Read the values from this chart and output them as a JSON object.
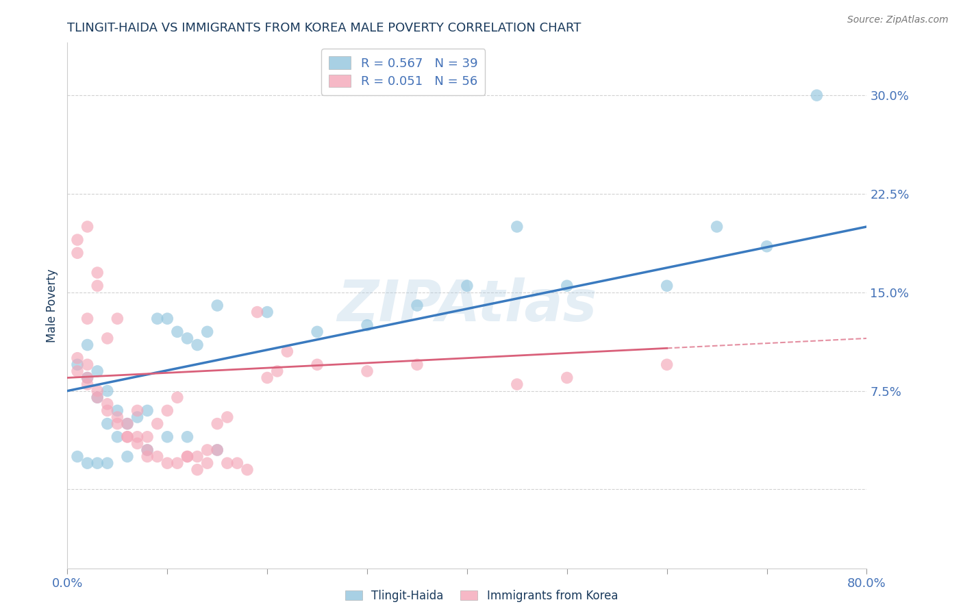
{
  "title": "TLINGIT-HAIDA VS IMMIGRANTS FROM KOREA MALE POVERTY CORRELATION CHART",
  "source": "Source: ZipAtlas.com",
  "ylabel": "Male Poverty",
  "xlim": [
    0.0,
    0.8
  ],
  "ylim": [
    -0.06,
    0.34
  ],
  "ytick_vals": [
    0.0,
    0.075,
    0.15,
    0.225,
    0.3
  ],
  "ytick_labels": [
    "",
    "7.5%",
    "15.0%",
    "22.5%",
    "30.0%"
  ],
  "xtick_vals": [
    0.0,
    0.1,
    0.2,
    0.3,
    0.4,
    0.5,
    0.6,
    0.7,
    0.8
  ],
  "xtick_labels": [
    "0.0%",
    "",
    "",
    "",
    "",
    "",
    "",
    "",
    "80.0%"
  ],
  "watermark": "ZIPAtlas",
  "legend_r1": "R = 0.567",
  "legend_n1": "N = 39",
  "legend_r2": "R = 0.051",
  "legend_n2": "N = 56",
  "series1_color": "#92c5de",
  "series2_color": "#f4a6b8",
  "line1_color": "#3a7abf",
  "line2_color": "#d9607a",
  "background_color": "#ffffff",
  "grid_color": "#cccccc",
  "title_color": "#1a3a5c",
  "axis_label_color": "#1a3a5c",
  "tick_color": "#4472b8",
  "series1_x": [
    0.01,
    0.02,
    0.02,
    0.03,
    0.03,
    0.04,
    0.04,
    0.05,
    0.05,
    0.06,
    0.07,
    0.08,
    0.09,
    0.1,
    0.11,
    0.12,
    0.13,
    0.14,
    0.15,
    0.2,
    0.25,
    0.3,
    0.35,
    0.4,
    0.45,
    0.5,
    0.6,
    0.65,
    0.7,
    0.75,
    0.01,
    0.02,
    0.03,
    0.04,
    0.06,
    0.08,
    0.1,
    0.12,
    0.15
  ],
  "series1_y": [
    0.095,
    0.085,
    0.11,
    0.09,
    0.07,
    0.075,
    0.05,
    0.06,
    0.04,
    0.05,
    0.055,
    0.06,
    0.13,
    0.13,
    0.12,
    0.115,
    0.11,
    0.12,
    0.14,
    0.135,
    0.12,
    0.125,
    0.14,
    0.155,
    0.2,
    0.155,
    0.155,
    0.2,
    0.185,
    0.3,
    0.025,
    0.02,
    0.02,
    0.02,
    0.025,
    0.03,
    0.04,
    0.04,
    0.03
  ],
  "series2_x": [
    0.01,
    0.01,
    0.02,
    0.02,
    0.02,
    0.03,
    0.03,
    0.04,
    0.04,
    0.05,
    0.05,
    0.06,
    0.06,
    0.07,
    0.07,
    0.08,
    0.08,
    0.09,
    0.1,
    0.11,
    0.12,
    0.13,
    0.14,
    0.15,
    0.16,
    0.17,
    0.18,
    0.19,
    0.2,
    0.21,
    0.01,
    0.01,
    0.02,
    0.02,
    0.03,
    0.03,
    0.04,
    0.05,
    0.06,
    0.07,
    0.08,
    0.09,
    0.1,
    0.11,
    0.12,
    0.13,
    0.14,
    0.15,
    0.16,
    0.22,
    0.25,
    0.3,
    0.35,
    0.45,
    0.5,
    0.6
  ],
  "series2_y": [
    0.1,
    0.09,
    0.095,
    0.085,
    0.08,
    0.075,
    0.07,
    0.065,
    0.06,
    0.055,
    0.05,
    0.05,
    0.04,
    0.04,
    0.035,
    0.03,
    0.025,
    0.025,
    0.02,
    0.02,
    0.025,
    0.025,
    0.03,
    0.03,
    0.02,
    0.02,
    0.015,
    0.135,
    0.085,
    0.09,
    0.19,
    0.18,
    0.2,
    0.13,
    0.155,
    0.165,
    0.115,
    0.13,
    0.04,
    0.06,
    0.04,
    0.05,
    0.06,
    0.07,
    0.025,
    0.015,
    0.02,
    0.05,
    0.055,
    0.105,
    0.095,
    0.09,
    0.095,
    0.08,
    0.085,
    0.095
  ],
  "line1_x_start": 0.0,
  "line1_x_end": 0.8,
  "line1_y_start": 0.075,
  "line1_y_end": 0.2,
  "line2_x_start": 0.0,
  "line2_x_end": 0.8,
  "line2_y_start": 0.085,
  "line2_y_end": 0.115,
  "line2_solid_end": 0.6
}
